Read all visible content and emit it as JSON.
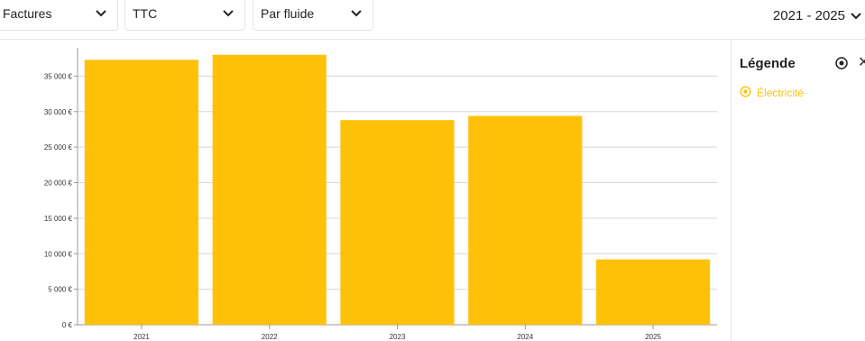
{
  "filters": {
    "type_label": "Factures",
    "tax_label": "TTC",
    "group_label": "Par fluide",
    "period_label": "2021 - 2025"
  },
  "legend": {
    "title": "Légende",
    "items": [
      {
        "label": "Électricité",
        "color": "#FFC107"
      }
    ]
  },
  "chart_data": {
    "type": "bar",
    "categories": [
      "2021",
      "2022",
      "2023",
      "2024",
      "2025"
    ],
    "series": [
      {
        "name": "Électricité",
        "color": "#FFC107",
        "values": [
          37300,
          38000,
          28800,
          29400,
          9200
        ]
      }
    ],
    "yticks": [
      "0 €",
      "5 000 €",
      "10 000 €",
      "15 000 €",
      "20 000 €",
      "25 000 €",
      "30 000 €",
      "35 000 €"
    ],
    "ylim": [
      0,
      40000
    ],
    "grid": true
  }
}
